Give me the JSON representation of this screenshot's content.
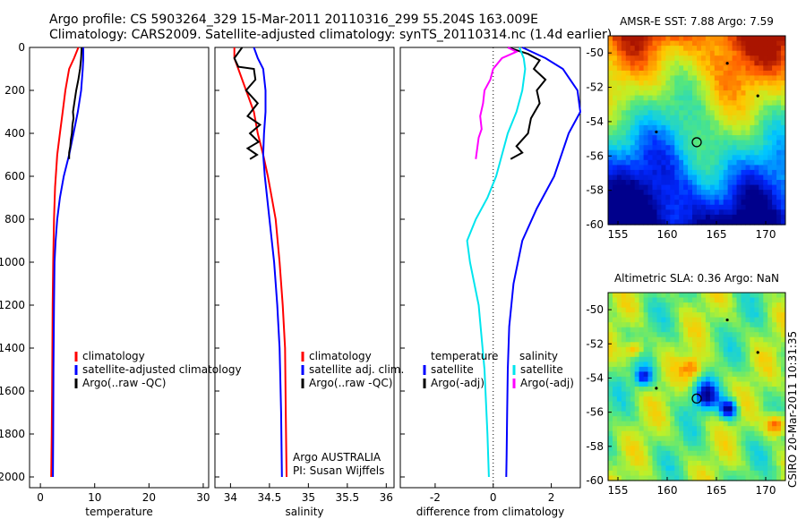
{
  "header": {
    "line1": "Argo profile: CS 5903264_329 15-Mar-2011 20110316_299 55.204S 163.009E",
    "line2": "Climatology: CARS2009. Satellite-adjusted climatology: synTS_20110314.nc (1.4d earlier)"
  },
  "colors": {
    "climatology": "#ff0000",
    "satellite": "#0000ff",
    "argo": "#000000",
    "diff_temp_satellite": "#0000ff",
    "diff_sal_satellite": "#00e5ee",
    "diff_sal_argo": "#ff00ff"
  },
  "footer": {
    "stamp": "CSIRO 20-Mar-2011 10:31:35"
  },
  "chart_data": [
    {
      "id": "temperature",
      "type": "line",
      "xlabel": "temperature",
      "ylabel": "",
      "xlim": [
        -2,
        31
      ],
      "ylim": [
        2050,
        0
      ],
      "xticks": [
        0,
        10,
        20,
        30
      ],
      "yticks": [
        0,
        200,
        400,
        600,
        800,
        1000,
        1200,
        1400,
        1600,
        1800,
        2000
      ],
      "legend": [
        "climatology",
        "satellite-adjusted climatology",
        "Argo(..raw -QC)"
      ],
      "series": [
        {
          "name": "climatology",
          "color": "#ff0000",
          "x": [
            7.0,
            6.2,
            5.3,
            4.6,
            4.1,
            3.6,
            3.1,
            2.7,
            2.5,
            2.35,
            2.25,
            2.2,
            2.15,
            2.1,
            2.05,
            2.0
          ],
          "y": [
            0,
            50,
            100,
            200,
            300,
            400,
            500,
            650,
            800,
            1000,
            1200,
            1400,
            1600,
            1800,
            1900,
            2000
          ]
        },
        {
          "name": "satellite-adjusted climatology",
          "color": "#0000ff",
          "x": [
            7.9,
            7.9,
            7.8,
            7.5,
            6.9,
            6.1,
            5.3,
            4.3,
            3.6,
            3.1,
            2.8,
            2.6,
            2.5,
            2.4,
            2.35,
            2.3
          ],
          "y": [
            0,
            50,
            100,
            200,
            300,
            400,
            500,
            600,
            700,
            800,
            900,
            1000,
            1200,
            1500,
            1800,
            2000
          ]
        },
        {
          "name": "Argo(..raw -QC)",
          "color": "#000000",
          "x": [
            7.6,
            7.5,
            7.3,
            7.0,
            6.6,
            6.3,
            6.0,
            6.1,
            5.9,
            5.8,
            5.6,
            5.5,
            5.3,
            5.3
          ],
          "y": [
            0,
            50,
            100,
            150,
            200,
            250,
            300,
            330,
            360,
            400,
            430,
            460,
            490,
            520
          ]
        }
      ]
    },
    {
      "id": "salinity",
      "type": "line",
      "xlabel": "salinity",
      "ylabel": "",
      "xlim": [
        33.8,
        36.1
      ],
      "ylim": [
        2050,
        0
      ],
      "xticks": [
        34,
        34.5,
        35,
        35.5,
        36
      ],
      "yticks": [
        0,
        200,
        400,
        600,
        800,
        1000,
        1200,
        1400,
        1600,
        1800,
        2000
      ],
      "legend": [
        "climatology",
        "satellite adj. clim.",
        "Argo(..raw -QC)"
      ],
      "annotation": [
        "Argo AUSTRALIA",
        "PI: Susan Wijffels"
      ],
      "series": [
        {
          "name": "climatology",
          "color": "#ff0000",
          "x": [
            34.05,
            34.05,
            34.1,
            34.2,
            34.3,
            34.35,
            34.42,
            34.48,
            34.53,
            34.58,
            34.63,
            34.67,
            34.7,
            34.71,
            34.72
          ],
          "y": [
            0,
            50,
            100,
            200,
            300,
            400,
            500,
            600,
            700,
            800,
            1000,
            1200,
            1400,
            1700,
            2000
          ]
        },
        {
          "name": "satellite adj. clim.",
          "color": "#0000ff",
          "x": [
            34.3,
            34.35,
            34.42,
            34.45,
            34.45,
            34.43,
            34.42,
            34.44,
            34.5,
            34.56,
            34.6,
            34.63,
            34.65,
            34.66
          ],
          "y": [
            0,
            50,
            100,
            200,
            300,
            400,
            500,
            600,
            800,
            1000,
            1200,
            1400,
            1700,
            2000
          ]
        },
        {
          "name": "Argo(..raw -QC)",
          "color": "#000000",
          "x": [
            34.15,
            34.05,
            34.1,
            34.3,
            34.32,
            34.2,
            34.35,
            34.22,
            34.38,
            34.25,
            34.36,
            34.22,
            34.34,
            34.25
          ],
          "y": [
            0,
            50,
            90,
            100,
            150,
            200,
            260,
            320,
            360,
            400,
            440,
            470,
            500,
            520
          ]
        }
      ]
    },
    {
      "id": "difference",
      "type": "line",
      "xlabel": "difference from climatology",
      "ylabel": "",
      "xlim": [
        -3.2,
        3.0
      ],
      "ylim": [
        2050,
        0
      ],
      "xticks": [
        -2,
        0,
        2
      ],
      "yticks": [
        0,
        200,
        400,
        600,
        800,
        1000,
        1200,
        1400,
        1600,
        1800,
        2000
      ],
      "legend_temperature": [
        "temperature",
        "satellite",
        "Argo(-adj)"
      ],
      "legend_salinity": [
        "salinity",
        "satellite",
        "Argo(-adj)"
      ],
      "series": [
        {
          "name": "temperature satellite",
          "color": "#0000ff",
          "x": [
            1.0,
            1.8,
            2.4,
            2.9,
            3.0,
            2.6,
            2.1,
            1.5,
            1.0,
            0.7,
            0.55,
            0.5,
            0.48,
            0.46,
            0.45
          ],
          "y": [
            0,
            50,
            100,
            200,
            300,
            400,
            600,
            750,
            900,
            1100,
            1300,
            1500,
            1700,
            1900,
            2000
          ]
        },
        {
          "name": "temperature Argo(-adj)",
          "color": "#000000",
          "x": [
            0.5,
            1.2,
            1.6,
            1.4,
            1.8,
            1.5,
            1.6,
            1.3,
            1.2,
            0.8,
            1.0,
            0.6
          ],
          "y": [
            0,
            30,
            60,
            100,
            150,
            200,
            260,
            330,
            400,
            460,
            490,
            520
          ]
        },
        {
          "name": "salinity satellite",
          "color": "#00e5ee",
          "x": [
            0.9,
            1.05,
            1.1,
            1.0,
            0.8,
            0.5,
            0.3,
            0.1,
            -0.2,
            -0.6,
            -0.9,
            -0.8,
            -0.5,
            -0.3,
            -0.2,
            -0.15
          ],
          "y": [
            0,
            50,
            100,
            200,
            300,
            400,
            500,
            600,
            700,
            800,
            900,
            1000,
            1200,
            1500,
            1800,
            2000
          ]
        },
        {
          "name": "salinity Argo(-adj)",
          "color": "#ff00ff",
          "x": [
            0.5,
            0.8,
            0.3,
            0.0,
            -0.1,
            -0.3,
            -0.35,
            -0.45,
            -0.4,
            -0.5,
            -0.55,
            -0.6
          ],
          "y": [
            0,
            20,
            50,
            100,
            150,
            200,
            260,
            320,
            380,
            420,
            470,
            520
          ]
        }
      ]
    },
    {
      "id": "amsre-sst",
      "type": "heatmap",
      "title": "AMSR-E SST: 7.88 Argo: 7.59",
      "xlim": [
        154,
        172
      ],
      "ylim": [
        -60,
        -49
      ],
      "xticks": [
        155,
        160,
        165,
        170
      ],
      "yticks": [
        -50,
        -52,
        -54,
        -56,
        -58,
        -60
      ],
      "marker": {
        "lon": 163.0,
        "lat": -55.2
      }
    },
    {
      "id": "altimetric-sla",
      "type": "heatmap",
      "title": "Altimetric SLA: 0.36 Argo: NaN",
      "xlim": [
        154,
        172
      ],
      "ylim": [
        -60,
        -49
      ],
      "xticks": [
        155,
        160,
        165,
        170
      ],
      "yticks": [
        -50,
        -52,
        -54,
        -56,
        -58,
        -60
      ],
      "marker": {
        "lon": 163.0,
        "lat": -55.2
      }
    }
  ]
}
